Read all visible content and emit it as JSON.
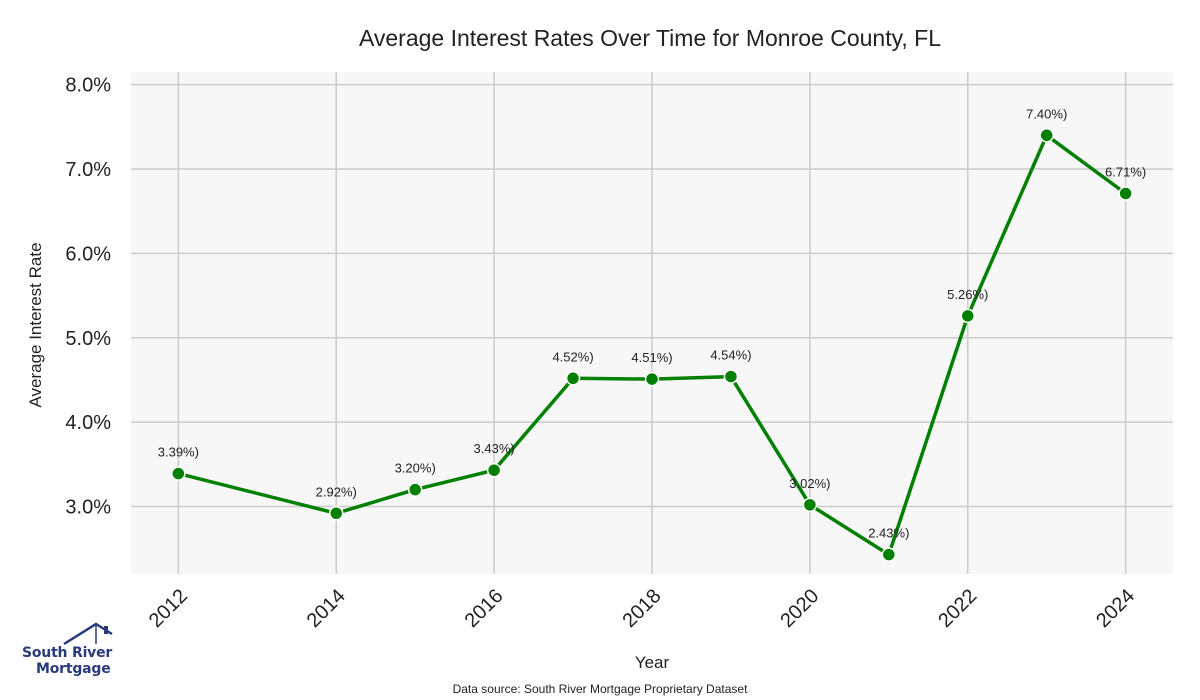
{
  "chart_data": {
    "type": "line",
    "title": "Average Interest Rates Over Time for Monroe County, FL",
    "xlabel": "Year",
    "ylabel": "Average Interest Rate",
    "x": [
      2012,
      2014,
      2015,
      2016,
      2017,
      2018,
      2019,
      2020,
      2021,
      2022,
      2023,
      2024
    ],
    "series": [
      {
        "name": "",
        "values": [
          3.39,
          2.92,
          3.2,
          3.43,
          4.52,
          4.51,
          4.54,
          3.02,
          2.43,
          5.26,
          7.4,
          6.71
        ],
        "labels": [
          "3.39%)",
          "2.92%)",
          "3.20%)",
          "3.43%)",
          "4.52%)",
          "4.51%)",
          "4.54%)",
          "3.02%)",
          "2.43%)",
          "5.26%)",
          "7.40%)",
          "6.71%)"
        ],
        "color": "#008000"
      }
    ],
    "x_ticks": [
      "2012",
      "2014",
      "2016",
      "2018",
      "2020",
      "2022",
      "2024"
    ],
    "y_ticks": [
      "3.0%",
      "4.0%",
      "5.0%",
      "6.0%",
      "7.0%",
      "8.0%"
    ],
    "xlim": [
      2011.4,
      2024.6
    ],
    "ylim": [
      2.2,
      8.15
    ],
    "grid": true,
    "background": "#f7f7f7",
    "grid_color": "#cccccc"
  },
  "logo": {
    "line1": "South River",
    "line2": "Mortgage",
    "color": "#2b3a7a"
  },
  "source": "Data source: South River Mortgage Proprietary Dataset"
}
